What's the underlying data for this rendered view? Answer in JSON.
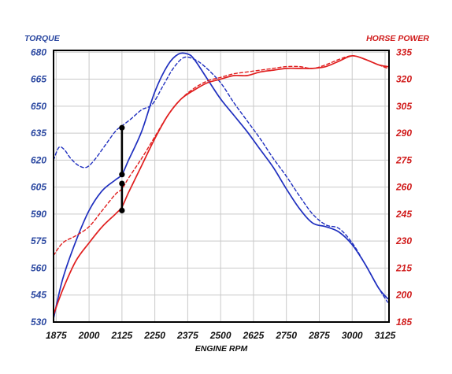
{
  "chart_data": {
    "type": "line",
    "xlabel": "ENGINE RPM",
    "ylabel_left": "TORQUE",
    "ylabel_right": "HORSE POWER",
    "xlim": [
      1865,
      3140
    ],
    "ylim_left": [
      530,
      681
    ],
    "ylim_right": [
      185,
      336
    ],
    "x_ticks": [
      1875,
      2000,
      2125,
      2250,
      2375,
      2500,
      2625,
      2750,
      2875,
      3000,
      3125
    ],
    "y_ticks_left": [
      530,
      545,
      560,
      575,
      590,
      605,
      620,
      635,
      650,
      665,
      680
    ],
    "y_ticks_right": [
      185,
      200,
      215,
      230,
      245,
      260,
      275,
      290,
      305,
      320,
      335
    ],
    "grid": true,
    "colors": {
      "torque": "#1f2fbf",
      "horsepower": "#e01e1e",
      "left_axis_text": "#2a47a0",
      "right_axis_text": "#d01a1a",
      "frame": "#000000",
      "grid": "#c9c9c9",
      "marker": "#000000"
    },
    "series": [
      {
        "axis": "left",
        "color": "torque",
        "style": "solid",
        "points": [
          [
            1865,
            532
          ],
          [
            1900,
            554
          ],
          [
            1950,
            575
          ],
          [
            2000,
            592
          ],
          [
            2050,
            603
          ],
          [
            2100,
            609
          ],
          [
            2125,
            612
          ],
          [
            2150,
            620
          ],
          [
            2200,
            636
          ],
          [
            2250,
            658
          ],
          [
            2300,
            673
          ],
          [
            2340,
            679
          ],
          [
            2375,
            679
          ],
          [
            2400,
            676
          ],
          [
            2450,
            665
          ],
          [
            2500,
            654
          ],
          [
            2550,
            645
          ],
          [
            2600,
            636
          ],
          [
            2650,
            626
          ],
          [
            2700,
            616
          ],
          [
            2750,
            604
          ],
          [
            2800,
            593
          ],
          [
            2850,
            585
          ],
          [
            2900,
            583
          ],
          [
            2950,
            580
          ],
          [
            3000,
            573
          ],
          [
            3050,
            562
          ],
          [
            3100,
            549
          ],
          [
            3135,
            543
          ]
        ]
      },
      {
        "axis": "left",
        "color": "torque",
        "style": "dashed",
        "points": [
          [
            1865,
            620
          ],
          [
            1885,
            627
          ],
          [
            1905,
            626
          ],
          [
            1930,
            621
          ],
          [
            1960,
            617
          ],
          [
            1990,
            616
          ],
          [
            2020,
            620
          ],
          [
            2060,
            628
          ],
          [
            2100,
            636
          ],
          [
            2125,
            639
          ],
          [
            2160,
            643
          ],
          [
            2200,
            648
          ],
          [
            2240,
            651
          ],
          [
            2280,
            661
          ],
          [
            2320,
            671
          ],
          [
            2360,
            677
          ],
          [
            2400,
            676
          ],
          [
            2440,
            672
          ],
          [
            2500,
            663
          ],
          [
            2550,
            652
          ],
          [
            2600,
            642
          ],
          [
            2650,
            632
          ],
          [
            2700,
            621
          ],
          [
            2750,
            611
          ],
          [
            2800,
            600
          ],
          [
            2850,
            590
          ],
          [
            2900,
            584
          ],
          [
            2950,
            582
          ],
          [
            3000,
            574
          ],
          [
            3050,
            562
          ],
          [
            3100,
            549
          ],
          [
            3135,
            541
          ]
        ]
      },
      {
        "axis": "right",
        "color": "horsepower",
        "style": "solid",
        "points": [
          [
            1865,
            189
          ],
          [
            1900,
            203
          ],
          [
            1950,
            219
          ],
          [
            2000,
            229
          ],
          [
            2050,
            238
          ],
          [
            2100,
            245
          ],
          [
            2125,
            249
          ],
          [
            2150,
            257
          ],
          [
            2200,
            272
          ],
          [
            2250,
            287
          ],
          [
            2300,
            300
          ],
          [
            2350,
            309
          ],
          [
            2400,
            314
          ],
          [
            2450,
            318
          ],
          [
            2500,
            320
          ],
          [
            2550,
            322
          ],
          [
            2600,
            322
          ],
          [
            2650,
            324
          ],
          [
            2700,
            325
          ],
          [
            2750,
            326
          ],
          [
            2800,
            326
          ],
          [
            2850,
            326
          ],
          [
            2900,
            327
          ],
          [
            2950,
            330
          ],
          [
            3000,
            333
          ],
          [
            3050,
            331
          ],
          [
            3100,
            328
          ],
          [
            3135,
            327
          ]
        ]
      },
      {
        "axis": "right",
        "color": "horsepower",
        "style": "dashed",
        "points": [
          [
            1865,
            222
          ],
          [
            1900,
            229
          ],
          [
            1950,
            233
          ],
          [
            2000,
            238
          ],
          [
            2050,
            247
          ],
          [
            2100,
            256
          ],
          [
            2125,
            259
          ],
          [
            2150,
            265
          ],
          [
            2200,
            276
          ],
          [
            2250,
            288
          ],
          [
            2300,
            300
          ],
          [
            2350,
            309
          ],
          [
            2400,
            315
          ],
          [
            2450,
            319
          ],
          [
            2500,
            321
          ],
          [
            2550,
            323
          ],
          [
            2600,
            324
          ],
          [
            2650,
            325
          ],
          [
            2700,
            326
          ],
          [
            2750,
            327
          ],
          [
            2800,
            327
          ],
          [
            2850,
            326
          ],
          [
            2900,
            328
          ],
          [
            2950,
            331
          ],
          [
            3000,
            333
          ],
          [
            3050,
            331
          ],
          [
            3100,
            328
          ],
          [
            3135,
            326
          ]
        ]
      }
    ],
    "annotations": [
      {
        "axis": "left",
        "x": 2125,
        "from": 612,
        "to": 638
      },
      {
        "axis": "right",
        "x": 2125,
        "from": 247,
        "to": 262
      }
    ]
  }
}
